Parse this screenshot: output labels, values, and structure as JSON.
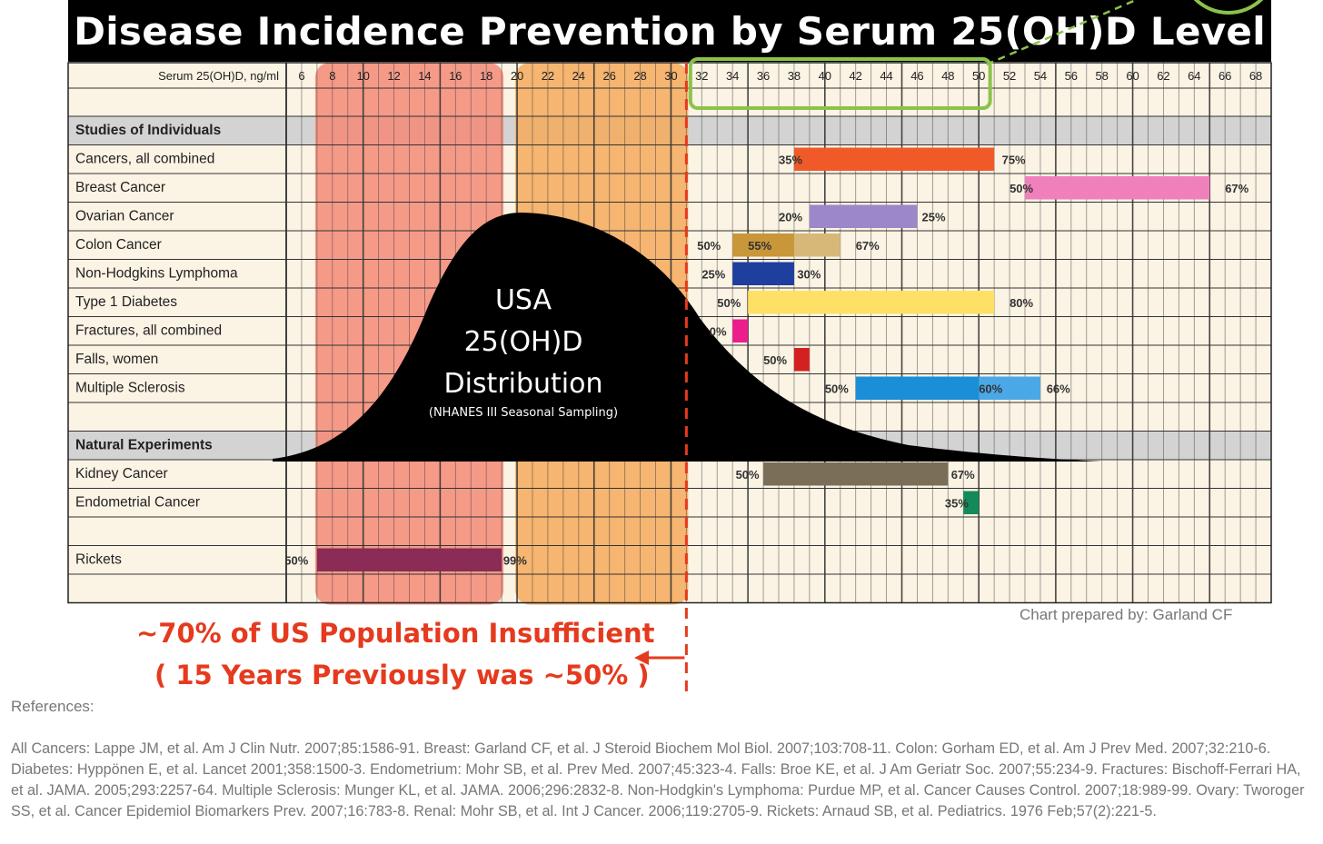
{
  "chart_data": {
    "type": "bar",
    "title": "Disease Incidence Prevention by Serum 25(OH)D Level",
    "xlabel": "Serum 25(OH)D, ng/ml",
    "x_ticks": [
      6,
      8,
      10,
      12,
      14,
      16,
      18,
      20,
      22,
      24,
      26,
      28,
      30,
      32,
      34,
      36,
      38,
      40,
      42,
      44,
      46,
      48,
      50,
      52,
      54,
      56,
      58,
      60,
      62,
      64,
      66,
      68
    ],
    "xlim": [
      5,
      69
    ],
    "rows": [
      {
        "label": "Studies of Individuals",
        "section": true
      },
      {
        "label": "Cancers, all combined",
        "bars": [
          {
            "x0": 38,
            "x1": 51,
            "color": "#f05a28"
          }
        ],
        "labels": [
          {
            "text": "35%",
            "x": 37
          },
          {
            "text": "75%",
            "x": 51.5
          }
        ]
      },
      {
        "label": "Breast Cancer",
        "bars": [
          {
            "x0": 53,
            "x1": 65,
            "color": "#f080bb"
          }
        ],
        "labels": [
          {
            "text": "50%",
            "x": 52
          },
          {
            "text": "67%",
            "x": 66
          }
        ]
      },
      {
        "label": "Ovarian Cancer",
        "bars": [
          {
            "x0": 39,
            "x1": 46,
            "color": "#9b87c9"
          }
        ],
        "labels": [
          {
            "text": "20%",
            "x": 37
          },
          {
            "text": "25%",
            "x": 46.3
          }
        ]
      },
      {
        "label": "Colon Cancer",
        "bars": [
          {
            "x0": 34,
            "x1": 38,
            "color": "#c9963a"
          },
          {
            "x0": 38,
            "x1": 41,
            "color": "#d8b878"
          }
        ],
        "labels": [
          {
            "text": "50%",
            "x": 31.7
          },
          {
            "text": "55%",
            "x": 35
          },
          {
            "text": "67%",
            "x": 42
          }
        ]
      },
      {
        "label": "Non-Hodgkins Lymphoma",
        "bars": [
          {
            "x0": 34,
            "x1": 38,
            "color": "#1f3f9e"
          }
        ],
        "labels": [
          {
            "text": "25%",
            "x": 32
          },
          {
            "text": "30%",
            "x": 38.2
          }
        ]
      },
      {
        "label": "Type 1 Diabetes",
        "bars": [
          {
            "x0": 35,
            "x1": 51,
            "color": "#ffe066"
          }
        ],
        "labels": [
          {
            "text": "50%",
            "x": 33
          },
          {
            "text": "80%",
            "x": 52
          }
        ]
      },
      {
        "label": "Fractures, all combined",
        "bars": [
          {
            "x0": 34,
            "x1": 35,
            "color": "#ec1e8c"
          }
        ],
        "labels": [
          {
            "text": "0%",
            "x": 32.5
          }
        ]
      },
      {
        "label": "Falls, women",
        "bars": [
          {
            "x0": 38,
            "x1": 39,
            "color": "#d42020"
          }
        ],
        "labels": [
          {
            "text": "50%",
            "x": 36
          }
        ]
      },
      {
        "label": "Multiple Sclerosis",
        "bars": [
          {
            "x0": 42,
            "x1": 50,
            "color": "#1a8fd8"
          },
          {
            "x0": 50,
            "x1": 54,
            "color": "#4aa8e6"
          }
        ],
        "labels": [
          {
            "text": "50%",
            "x": 40
          },
          {
            "text": "60%",
            "x": 50
          },
          {
            "text": "66%",
            "x": 54.4
          }
        ]
      },
      {
        "label": "",
        "spacer": true
      },
      {
        "label": "Natural Experiments",
        "section": true
      },
      {
        "label": "Kidney Cancer",
        "bars": [
          {
            "x0": 36,
            "x1": 48,
            "color": "#7a6e58"
          }
        ],
        "labels": [
          {
            "text": "50%",
            "x": 34.2
          },
          {
            "text": "67%",
            "x": 48.2
          }
        ]
      },
      {
        "label": "Endometrial Cancer",
        "bars": [
          {
            "x0": 49,
            "x1": 50,
            "color": "#148a5a"
          }
        ],
        "labels": [
          {
            "text": "35%",
            "x": 47.8
          }
        ]
      },
      {
        "label": "",
        "spacer": true
      },
      {
        "label": "Rickets",
        "bars": [
          {
            "x0": 7,
            "x1": 19,
            "color": "#8a2c55"
          }
        ],
        "labels": [
          {
            "text": "50%",
            "x": 4.9
          },
          {
            "text": "99%",
            "x": 19.1
          }
        ]
      },
      {
        "label": "",
        "spacer": true
      }
    ],
    "bands": [
      {
        "x0": 7,
        "x1": 19,
        "color": "#f58a78"
      },
      {
        "x0": 20,
        "x1": 31,
        "color": "#f5a95c"
      }
    ],
    "highlight_range": [
      32,
      50
    ],
    "cutoff": 31,
    "distribution": {
      "label_lines": [
        "USA",
        "25(OH)D",
        "Distribution"
      ],
      "sublabel": "(NHANES III Seasonal Sampling)"
    }
  },
  "annotations": {
    "insufficient_line1": "~70% of US Population Insufficient",
    "insufficient_line2": "( 15 Years Previously was ~50% )"
  },
  "footer": {
    "prepared_by": "Chart prepared by: Garland CF",
    "references_heading": "References:",
    "references": "All Cancers: Lappe JM, et al. Am J Clin Nutr. 2007;85:1586-91. Breast: Garland CF, et al. J Steroid Biochem Mol Biol. 2007;103:708-11. Colon: Gorham ED, et al. Am J Prev Med. 2007;32:210-6. Diabetes: Hyppönen E, et al. Lancet 2001;358:1500-3. Endometrium: Mohr SB, et al. Prev Med. 2007;45:323-4. Falls: Broe KE, et al. J Am Geriatr Soc. 2007;55:234-9. Fractures: Bischoff-Ferrari HA, et al. JAMA. 2005;293:2257-64. Multiple Sclerosis: Munger KL, et al. JAMA. 2006;296:2832-8. Non-Hodgkin's Lymphoma: Purdue MP, et al. Cancer Causes Control. 2007;18:989-99. Ovary: Tworoger SS, et al. Cancer Epidemiol Biomarkers Prev. 2007;16:783-8. Renal: Mohr SB, et al. Int J Cancer. 2006;119:2705-9. Rickets: Arnaud SB, et al. Pediatrics. 1976 Feb;57(2):221-5."
  }
}
